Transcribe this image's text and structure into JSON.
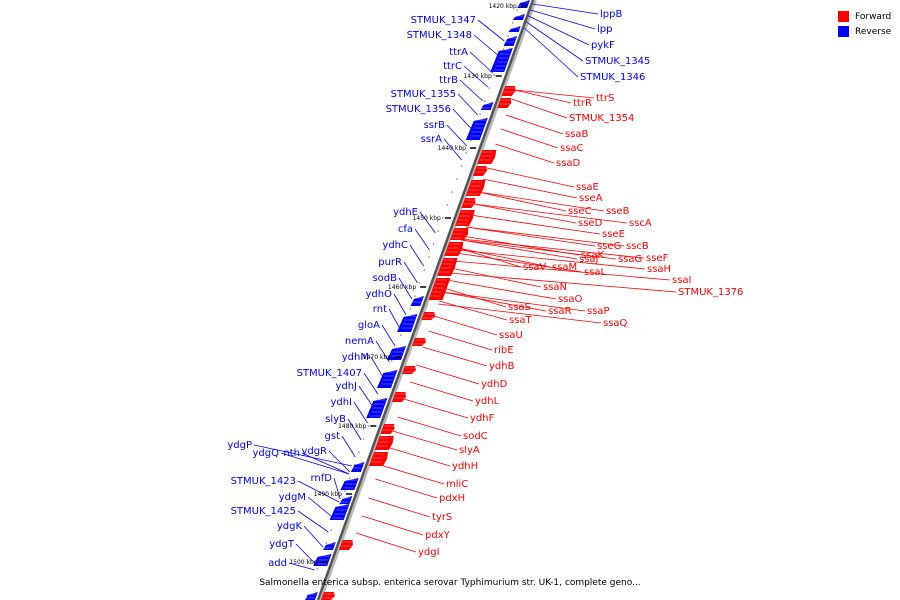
{
  "caption": "Salmonella enterica subsp. enterica serovar Typhimurium str. UK-1, complete geno...",
  "legend": {
    "forward": {
      "label": "Forward",
      "color": "#ff0000"
    },
    "reverse": {
      "label": "Reverse",
      "color": "#0000ff"
    }
  },
  "kbp_ticks": [
    "1420 kbp",
    "1430 kbp",
    "1440 kbp",
    "1450 kbp",
    "1460 kbp",
    "1470 kbp",
    "1480 kbp",
    "1490 kbp",
    "1500 kbp"
  ],
  "reverse_genes": [
    "STMUK_1347",
    "STMUK_1348",
    "ttrA",
    "ttrC",
    "ttrB",
    "STMUK_1355",
    "STMUK_1356",
    "ssrB",
    "ssrA",
    "ydhE",
    "cfa",
    "ydhC",
    "purR",
    "sodB",
    "ydhO",
    "rnt",
    "gloA",
    "nemA",
    "ydhM",
    "STMUK_1407",
    "ydhJ",
    "ydhI",
    "slyB",
    "gst",
    "ydgR",
    "ydgP",
    "ydgQ",
    "nth",
    "rnfD",
    "STMUK_1423",
    "ydgM",
    "STMUK_1425",
    "ydgK",
    "ydgT",
    "add"
  ],
  "reverse_right_genes": [
    "lppB",
    "lpp",
    "pykF",
    "STMUK_1345",
    "STMUK_1346"
  ],
  "forward_genes": [
    "ttrS",
    "ttrR",
    "STMUK_1354",
    "ssaB",
    "ssaC",
    "ssaD",
    "ssaE",
    "sseA",
    "sseC",
    "sseB",
    "sseD",
    "sscA",
    "sseE",
    "sseG",
    "sscB",
    "ssaK",
    "sseF",
    "ssaJ",
    "ssaG",
    "ssaH",
    "ssaV",
    "ssaM",
    "ssaL",
    "ssaI",
    "STMUK_1376",
    "ssaN",
    "ssaO",
    "ssaS",
    "ssaP",
    "ssaR",
    "ssaT",
    "ssaQ",
    "ssaU",
    "ribE",
    "ydhB",
    "ydhD",
    "ydhL",
    "ydhF",
    "sodC",
    "slyA",
    "ydhH",
    "mliC",
    "pdxH",
    "tyrS",
    "pdxY",
    "ydgI"
  ]
}
